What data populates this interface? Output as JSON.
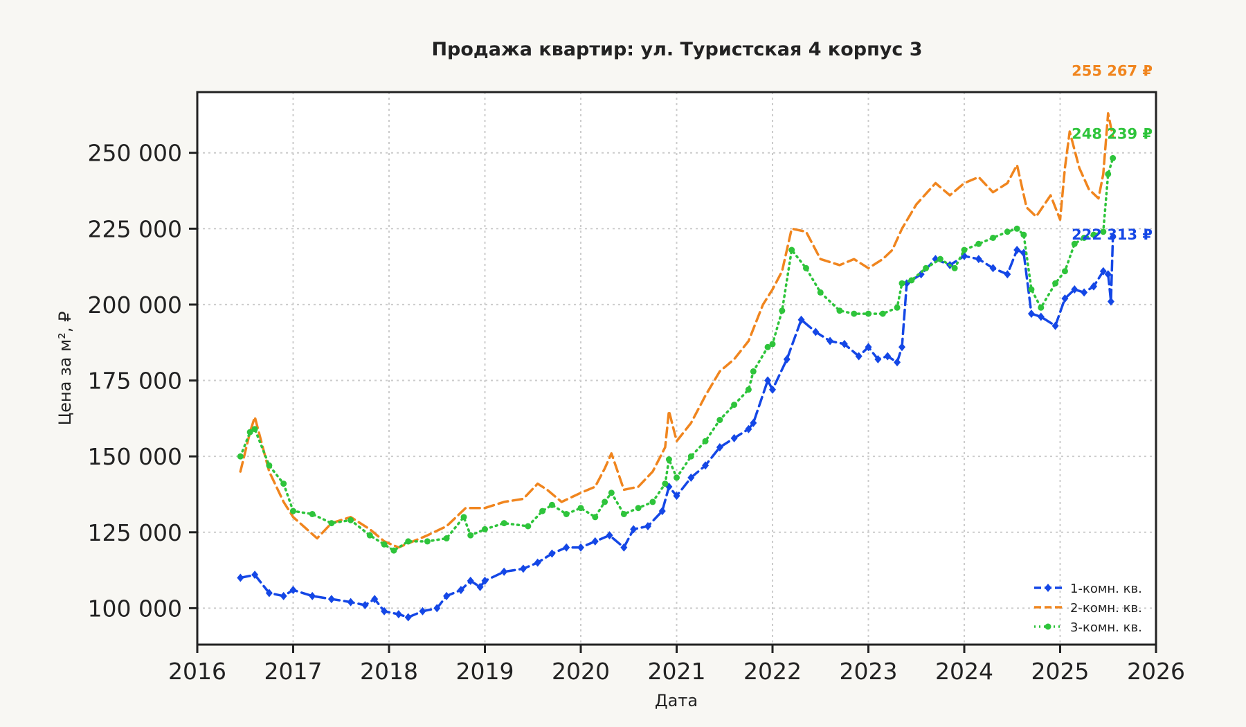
{
  "chart_data": {
    "type": "line",
    "title": "Продажа квартир: ул. Туристская 4 корпус 3",
    "xlabel": "Дата",
    "ylabel": "Цена за м², ₽",
    "xlim": [
      2016.0,
      2026.0
    ],
    "ylim": [
      88000,
      270000
    ],
    "x_ticks": [
      "2016",
      "2017",
      "2018",
      "2019",
      "2020",
      "2021",
      "2022",
      "2023",
      "2024",
      "2025",
      "2026"
    ],
    "y_ticks": [
      {
        "value": 100000,
        "label": "100 000"
      },
      {
        "value": 125000,
        "label": "125 000"
      },
      {
        "value": 150000,
        "label": "150 000"
      },
      {
        "value": 175000,
        "label": "175 000"
      },
      {
        "value": 200000,
        "label": "200 000"
      },
      {
        "value": 225000,
        "label": "225 000"
      },
      {
        "value": 250000,
        "label": "250 000"
      }
    ],
    "grid": true,
    "legend_position": "lower-right",
    "series": [
      {
        "name": "1-комн. кв.",
        "color": "#1447e6",
        "line_style": "dashed",
        "marker": "diamond",
        "end_label": "222 313 ₽",
        "x": [
          2016.45,
          2016.6,
          2016.75,
          2016.9,
          2017.0,
          2017.2,
          2017.4,
          2017.6,
          2017.75,
          2017.85,
          2017.95,
          2018.1,
          2018.2,
          2018.35,
          2018.5,
          2018.6,
          2018.75,
          2018.85,
          2018.95,
          2019.0,
          2019.2,
          2019.4,
          2019.55,
          2019.7,
          2019.85,
          2020.0,
          2020.15,
          2020.3,
          2020.45,
          2020.55,
          2020.7,
          2020.85,
          2020.92,
          2021.0,
          2021.15,
          2021.3,
          2021.45,
          2021.6,
          2021.75,
          2021.8,
          2021.95,
          2022.0,
          2022.15,
          2022.3,
          2022.45,
          2022.6,
          2022.75,
          2022.9,
          2023.0,
          2023.1,
          2023.2,
          2023.3,
          2023.35,
          2023.4,
          2023.55,
          2023.7,
          2023.85,
          2024.0,
          2024.15,
          2024.3,
          2024.45,
          2024.55,
          2024.62,
          2024.7,
          2024.8,
          2024.95,
          2025.05,
          2025.15,
          2025.25,
          2025.35,
          2025.45,
          2025.5,
          2025.53,
          2025.55
        ],
        "y": [
          110000,
          111000,
          105000,
          104000,
          106000,
          104000,
          103000,
          102000,
          101000,
          103000,
          99000,
          98000,
          97000,
          99000,
          100000,
          104000,
          106000,
          109000,
          107000,
          109000,
          112000,
          113000,
          115000,
          118000,
          120000,
          120000,
          122000,
          124000,
          120000,
          126000,
          127000,
          132000,
          140000,
          137000,
          143000,
          147000,
          153000,
          156000,
          159000,
          161000,
          175000,
          172000,
          182000,
          195000,
          191000,
          188000,
          187000,
          183000,
          186000,
          182000,
          183000,
          181000,
          186000,
          207000,
          210000,
          215000,
          213000,
          216000,
          215000,
          212000,
          210000,
          218000,
          217000,
          197000,
          196000,
          193000,
          202000,
          205000,
          204000,
          206000,
          211000,
          210000,
          201000,
          222313
        ]
      },
      {
        "name": "2-комн. кв.",
        "color": "#f0851e",
        "line_style": "dashed",
        "marker": "none",
        "end_label": "255 267 ₽",
        "x": [
          2016.45,
          2016.55,
          2016.6,
          2016.75,
          2016.9,
          2017.0,
          2017.25,
          2017.4,
          2017.6,
          2017.8,
          2017.95,
          2018.1,
          2018.25,
          2018.4,
          2018.6,
          2018.8,
          2019.0,
          2019.2,
          2019.4,
          2019.55,
          2019.65,
          2019.8,
          2020.0,
          2020.15,
          2020.25,
          2020.32,
          2020.45,
          2020.6,
          2020.75,
          2020.88,
          2020.92,
          2021.0,
          2021.15,
          2021.3,
          2021.45,
          2021.6,
          2021.75,
          2021.9,
          2022.0,
          2022.1,
          2022.2,
          2022.35,
          2022.5,
          2022.7,
          2022.85,
          2023.0,
          2023.15,
          2023.25,
          2023.35,
          2023.5,
          2023.7,
          2023.85,
          2024.0,
          2024.15,
          2024.3,
          2024.45,
          2024.55,
          2024.65,
          2024.75,
          2024.9,
          2025.0,
          2025.05,
          2025.1,
          2025.2,
          2025.3,
          2025.4,
          2025.45,
          2025.5,
          2025.55
        ],
        "y": [
          145000,
          158000,
          163000,
          145000,
          135000,
          130000,
          123000,
          128000,
          130000,
          126000,
          122000,
          120000,
          122000,
          124000,
          127000,
          133000,
          133000,
          135000,
          136000,
          141000,
          139000,
          135000,
          138000,
          140000,
          146000,
          151000,
          139000,
          140000,
          145000,
          153000,
          165000,
          155000,
          161000,
          170000,
          178000,
          182000,
          188000,
          200000,
          205000,
          211000,
          225000,
          224000,
          215000,
          213000,
          215000,
          212000,
          215000,
          218000,
          225000,
          233000,
          240000,
          236000,
          240000,
          242000,
          237000,
          240000,
          246000,
          232000,
          229000,
          236000,
          228000,
          245000,
          257000,
          245000,
          238000,
          235000,
          243000,
          263000,
          255267
        ]
      },
      {
        "name": "3-комн. кв.",
        "color": "#2ec43b",
        "line_style": "dotted",
        "marker": "circle",
        "end_label": "248 239 ₽",
        "x": [
          2016.45,
          2016.55,
          2016.6,
          2016.75,
          2016.9,
          2017.0,
          2017.2,
          2017.4,
          2017.6,
          2017.8,
          2017.95,
          2018.05,
          2018.2,
          2018.4,
          2018.6,
          2018.78,
          2018.85,
          2019.0,
          2019.2,
          2019.45,
          2019.6,
          2019.7,
          2019.85,
          2020.0,
          2020.15,
          2020.25,
          2020.32,
          2020.45,
          2020.6,
          2020.75,
          2020.88,
          2020.92,
          2021.0,
          2021.15,
          2021.3,
          2021.45,
          2021.6,
          2021.75,
          2021.8,
          2021.95,
          2022.0,
          2022.1,
          2022.2,
          2022.35,
          2022.5,
          2022.7,
          2022.85,
          2023.0,
          2023.15,
          2023.3,
          2023.35,
          2023.45,
          2023.6,
          2023.75,
          2023.9,
          2024.0,
          2024.15,
          2024.3,
          2024.45,
          2024.55,
          2024.62,
          2024.7,
          2024.8,
          2024.95,
          2025.05,
          2025.15,
          2025.25,
          2025.35,
          2025.45,
          2025.5,
          2025.55
        ],
        "y": [
          150000,
          158000,
          159000,
          147000,
          141000,
          132000,
          131000,
          128000,
          129000,
          124000,
          121000,
          119000,
          122000,
          122000,
          123000,
          130000,
          124000,
          126000,
          128000,
          127000,
          132000,
          134000,
          131000,
          133000,
          130000,
          135000,
          138000,
          131000,
          133000,
          135000,
          141000,
          149000,
          143000,
          150000,
          155000,
          162000,
          167000,
          172000,
          178000,
          186000,
          187000,
          198000,
          218000,
          212000,
          204000,
          198000,
          197000,
          197000,
          197000,
          199000,
          207000,
          208000,
          212000,
          215000,
          212000,
          218000,
          220000,
          222000,
          224000,
          225000,
          223000,
          205000,
          199000,
          207000,
          211000,
          220000,
          222000,
          223000,
          224000,
          243000,
          248239
        ]
      }
    ]
  }
}
